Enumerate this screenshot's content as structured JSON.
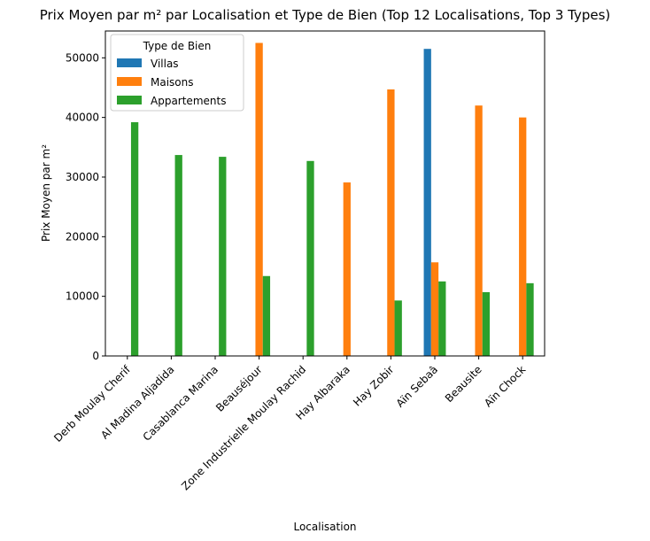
{
  "chart_data": {
    "type": "bar",
    "title": "Prix Moyen par m² par Localisation et Type de Bien (Top 12 Localisations, Top 3 Types)",
    "xlabel": "Localisation",
    "ylabel": "Prix Moyen par m²",
    "ylim": [
      0,
      54500
    ],
    "yticks": [
      0,
      10000,
      20000,
      30000,
      40000,
      50000
    ],
    "grid": false,
    "legend": {
      "title": "Type de Bien",
      "placement": "upper-left"
    },
    "categories": [
      "Derb Moulay Cherif",
      "Al Madina Aljadida",
      "Casablanca Marina",
      "Beauséjour",
      "Zone Industrielle Moulay Rachid",
      "Hay Albaraka",
      "Hay Zobir",
      "Aïn Sebaâ",
      "Beausite",
      "Aïn Chock"
    ],
    "series": [
      {
        "name": "Villas",
        "color": "#1f77b4",
        "values": [
          null,
          null,
          null,
          null,
          null,
          null,
          null,
          51500,
          null,
          null
        ]
      },
      {
        "name": "Maisons",
        "color": "#ff7f0e",
        "values": [
          null,
          null,
          null,
          52500,
          null,
          29100,
          44700,
          15700,
          42000,
          40000
        ]
      },
      {
        "name": "Appartements",
        "color": "#2ca02c",
        "values": [
          39200,
          33700,
          33400,
          13400,
          32700,
          null,
          9300,
          12500,
          10700,
          12200
        ]
      }
    ]
  }
}
